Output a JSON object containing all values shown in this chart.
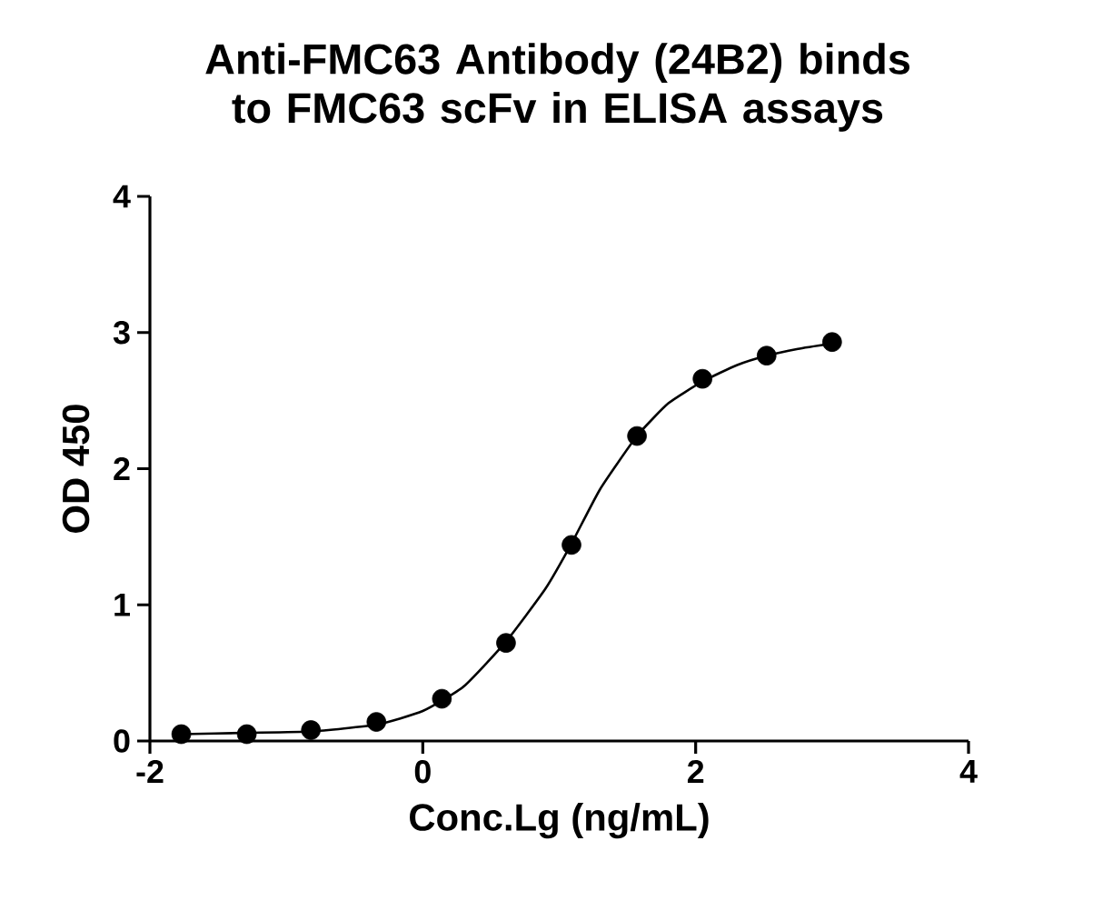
{
  "chart_data": {
    "type": "scatter",
    "title": "Anti-FMC63 Antibody (24B2) binds to FMC63 scFv in ELISA assays",
    "xlabel": "Conc.Lg (ng/mL)",
    "ylabel": "OD 450",
    "xlim": [
      -2,
      4
    ],
    "xticks": [
      -2,
      0,
      2,
      4
    ],
    "ylim": [
      0,
      4
    ],
    "yticks": [
      0,
      1,
      2,
      3,
      4
    ],
    "grid": false,
    "series": [
      {
        "color": "#000000",
        "marker": "circle",
        "x": [
          -1.77,
          -1.29,
          -0.82,
          -0.34,
          0.14,
          0.61,
          1.09,
          1.57,
          2.05,
          2.52,
          3.0
        ],
        "values": [
          0.05,
          0.05,
          0.08,
          0.14,
          0.31,
          0.72,
          1.44,
          2.24,
          2.66,
          2.83,
          2.93
        ]
      },
      {
        "type": "line",
        "color": "#000000",
        "marker": "none",
        "line_style": "solid",
        "x": [
          -1.77,
          -1.29,
          -0.82,
          -0.34,
          0.0,
          0.3,
          0.61,
          0.9,
          1.09,
          1.3,
          1.57,
          1.8,
          2.05,
          2.3,
          2.52,
          2.75,
          3.0
        ],
        "values": [
          0.05,
          0.06,
          0.07,
          0.12,
          0.22,
          0.4,
          0.73,
          1.12,
          1.45,
          1.85,
          2.24,
          2.48,
          2.64,
          2.76,
          2.83,
          2.88,
          2.92
        ]
      }
    ]
  }
}
